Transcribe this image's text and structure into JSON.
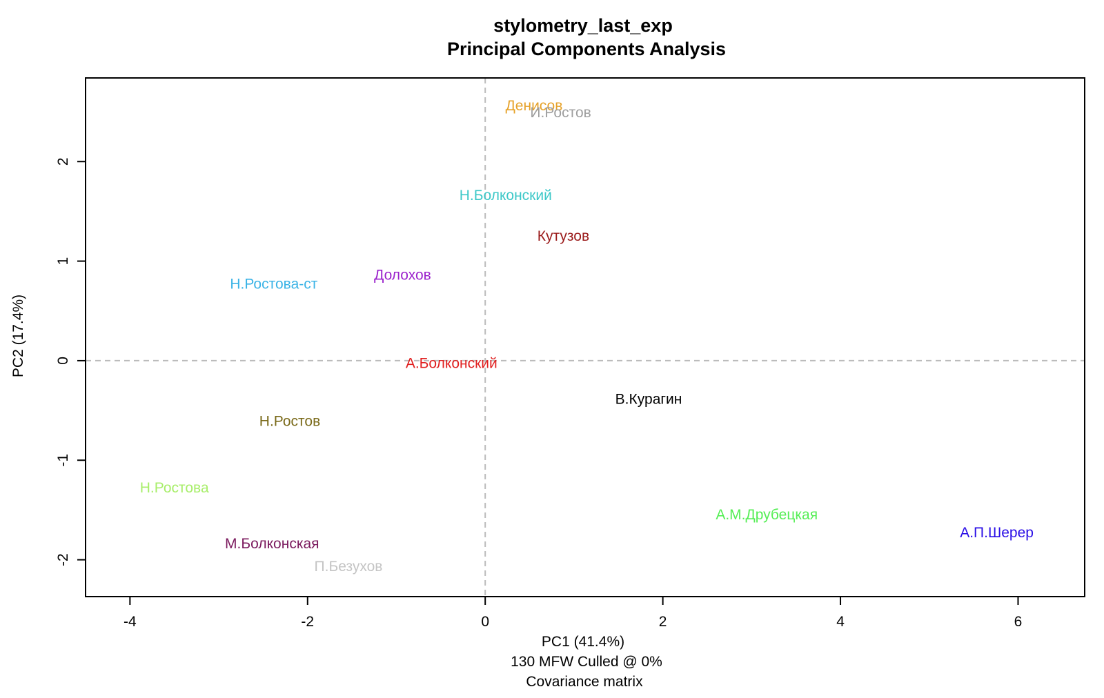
{
  "chart_data": {
    "type": "scatter",
    "title": "stylometry_last_exp",
    "subtitle": "Principal Components Analysis",
    "xlabel": "PC1 (41.4%)",
    "xlabel_line2": "130 MFW  Culled @ 0%",
    "xlabel_line3": "Covariance matrix",
    "ylabel": "PC2 (17.4%)",
    "xlim": [
      -4.5,
      6.75
    ],
    "ylim": [
      -2.37,
      2.84
    ],
    "x_ticks": [
      -4,
      -2,
      0,
      2,
      4,
      6
    ],
    "y_ticks": [
      -2,
      -1,
      0,
      1,
      2
    ],
    "reference_lines": {
      "x": 0,
      "y": 0,
      "style": "dashed",
      "color": "#bbbbbb"
    },
    "grid": false,
    "points": [
      {
        "label": "Денисов",
        "x": 0.55,
        "y": 2.56,
        "color": "#e6a22a"
      },
      {
        "label": "И.Ростов",
        "x": 0.85,
        "y": 2.49,
        "color": "#9e9e9e"
      },
      {
        "label": "Н.Болконский",
        "x": 0.23,
        "y": 1.66,
        "color": "#3cc8c8"
      },
      {
        "label": "Кутузов",
        "x": 0.88,
        "y": 1.25,
        "color": "#9b1b1b"
      },
      {
        "label": "Долохов",
        "x": -0.93,
        "y": 0.86,
        "color": "#9b22cc"
      },
      {
        "label": "Н.Ростова-ст",
        "x": -2.38,
        "y": 0.77,
        "color": "#3ab3e6"
      },
      {
        "label": "А.Болконский",
        "x": -0.38,
        "y": -0.03,
        "color": "#e02020"
      },
      {
        "label": "В.Курагин",
        "x": 1.84,
        "y": -0.39,
        "color": "#000000"
      },
      {
        "label": "Н.Ростов",
        "x": -2.2,
        "y": -0.61,
        "color": "#7a6a1a"
      },
      {
        "label": "Н.Ростова",
        "x": -3.5,
        "y": -1.28,
        "color": "#a8ee6a"
      },
      {
        "label": "А.М.Друбецкая",
        "x": 3.17,
        "y": -1.55,
        "color": "#55ee55"
      },
      {
        "label": "А.П.Шерер",
        "x": 5.76,
        "y": -1.73,
        "color": "#2a0ee6"
      },
      {
        "label": "М.Болконская",
        "x": -2.4,
        "y": -1.84,
        "color": "#7b1a5e"
      },
      {
        "label": "П.Безухов",
        "x": -1.54,
        "y": -2.07,
        "color": "#c4c4c4"
      }
    ]
  }
}
